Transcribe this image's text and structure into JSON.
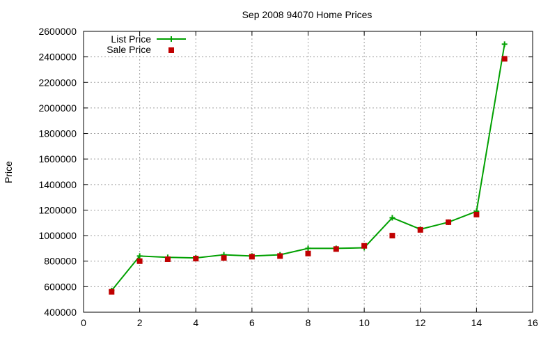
{
  "chart_data": {
    "type": "line",
    "title": "Sep 2008 94070 Home Prices",
    "xlabel": "",
    "ylabel": "Price",
    "xlim": [
      0,
      16
    ],
    "ylim": [
      400000,
      2600000
    ],
    "xticks": [
      0,
      2,
      4,
      6,
      8,
      10,
      12,
      14,
      16
    ],
    "yticks": [
      400000,
      600000,
      800000,
      1000000,
      1200000,
      1400000,
      1600000,
      1800000,
      2000000,
      2200000,
      2400000,
      2600000
    ],
    "grid": true,
    "legend_position": "top-left",
    "series": [
      {
        "name": "List Price",
        "style": "line+cross",
        "color": "#00a000",
        "x": [
          1,
          2,
          3,
          4,
          5,
          6,
          7,
          8,
          9,
          10,
          11,
          12,
          13,
          14,
          15
        ],
        "y": [
          570000,
          840000,
          830000,
          825000,
          850000,
          840000,
          850000,
          900000,
          900000,
          905000,
          1140000,
          1050000,
          1105000,
          1190000,
          2500000
        ]
      },
      {
        "name": "Sale Price",
        "style": "square",
        "color": "#c00000",
        "x": [
          1,
          2,
          3,
          4,
          5,
          6,
          7,
          8,
          9,
          10,
          11,
          12,
          13,
          14,
          15
        ],
        "y": [
          560000,
          800000,
          815000,
          820000,
          825000,
          835000,
          840000,
          860000,
          895000,
          920000,
          1000000,
          1045000,
          1105000,
          1165000,
          2385000
        ]
      }
    ]
  }
}
